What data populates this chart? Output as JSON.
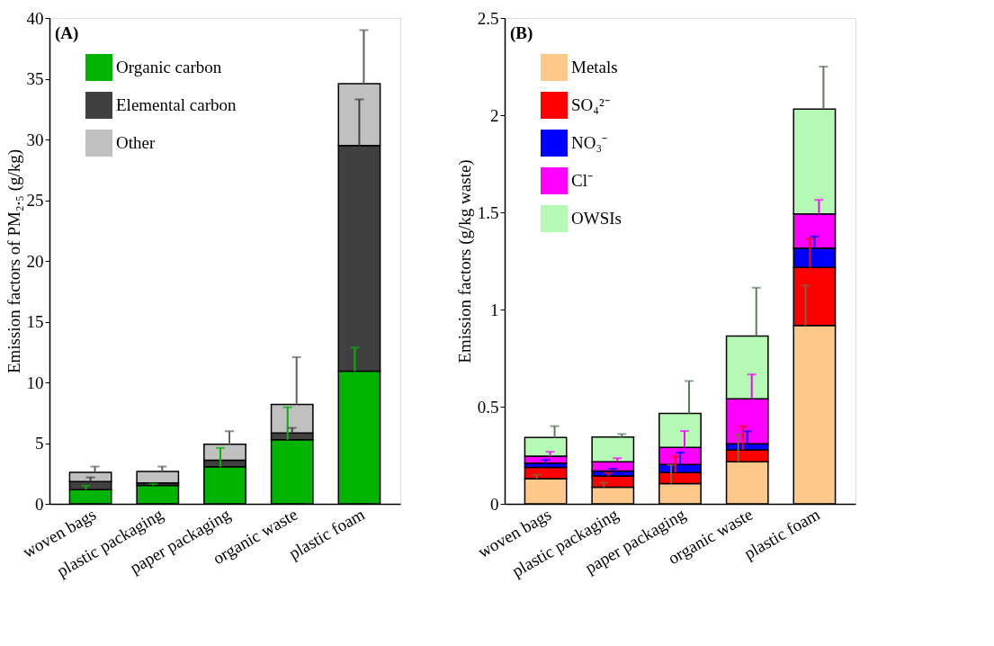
{
  "chart_data": [
    {
      "type": "bar",
      "stacked": true,
      "annotations": [
        "(A)"
      ],
      "ylabel": "Emission factors of PM₂.₅ (g/kg)",
      "categories": [
        "woven bags",
        "plastic packaging",
        "paper packaging",
        "organic waste",
        "plastic foam"
      ],
      "ylim": [
        0,
        40
      ],
      "yticks": [
        0,
        5,
        10,
        15,
        20,
        25,
        30,
        35,
        40
      ],
      "grid": false,
      "legend": "top left",
      "series": [
        {
          "name": "Organic carbon",
          "color": "#00b400",
          "values": [
            1.17,
            1.51,
            3.05,
            5.27,
            10.93
          ],
          "errors": [
            [
              1.17,
              1.49
            ],
            [
              1.51,
              1.65
            ],
            [
              3.05,
              4.6
            ],
            [
              5.27,
              7.95
            ],
            [
              10.93,
              12.85
            ]
          ]
        },
        {
          "name": "Elemental carbon",
          "color": "#404040",
          "values": [
            0.66,
            0.21,
            0.55,
            0.57,
            18.57
          ],
          "errors": [
            [
              1.83,
              2.18
            ],
            null,
            null,
            [
              5.84,
              6.25
            ],
            [
              29.5,
              33.3
            ]
          ]
        },
        {
          "name": "Other",
          "color": "#c0c0c0",
          "values": [
            0.76,
            0.94,
            1.3,
            2.34,
            5.1
          ],
          "errors": [
            [
              2.59,
              3.07
            ],
            [
              2.66,
              3.07
            ],
            [
              4.9,
              5.98
            ],
            [
              8.18,
              12.08
            ],
            [
              34.6,
              39.0
            ]
          ]
        }
      ]
    },
    {
      "type": "bar",
      "stacked": true,
      "annotations": [
        "(B)"
      ],
      "ylabel": "Emission factors (g/kg waste)",
      "categories": [
        "woven bags",
        "plastic packaging",
        "paper packaging",
        "organic waste",
        "plastic foam"
      ],
      "ylim": [
        0,
        2.5
      ],
      "yticks": [
        0,
        0.5,
        1,
        1.5,
        2,
        2.5
      ],
      "grid": false,
      "legend": "top left",
      "series": [
        {
          "name": "Metals",
          "color": "#fcc98a",
          "values": [
            0.13,
            0.086,
            0.104,
            0.216,
            0.918
          ],
          "errors": [
            [
              0.13,
              0.15
            ],
            [
              0.086,
              0.109
            ],
            [
              0.104,
              0.2
            ],
            [
              0.216,
              0.356
            ],
            [
              0.918,
              1.124
            ]
          ]
        },
        {
          "name": "SO₄²⁻",
          "color": "#ff0000",
          "values": [
            0.057,
            0.058,
            0.057,
            0.062,
            0.298
          ],
          "errors": [
            null,
            [
              0.144,
              0.159
            ],
            [
              0.161,
              0.243
            ],
            [
              0.278,
              0.399
            ],
            [
              1.216,
              1.364
            ]
          ]
        },
        {
          "name": "NO₃⁻",
          "color": "#0000ff",
          "values": [
            0.022,
            0.025,
            0.041,
            0.031,
            0.1
          ],
          "errors": [
            [
              0.209,
              0.226
            ],
            [
              0.169,
              0.181
            ],
            [
              0.202,
              0.264
            ],
            [
              0.309,
              0.373
            ],
            [
              1.316,
              1.376
            ]
          ]
        },
        {
          "name": "Cl⁻",
          "color": "#ff00ff",
          "values": [
            0.036,
            0.048,
            0.088,
            0.232,
            0.176
          ],
          "errors": [
            [
              0.245,
              0.268
            ],
            [
              0.217,
              0.235
            ],
            [
              0.29,
              0.375
            ],
            [
              0.541,
              0.666
            ],
            [
              1.492,
              1.564
            ]
          ]
        },
        {
          "name": "OWSIs",
          "color": "#b4fab4",
          "values": [
            0.096,
            0.127,
            0.175,
            0.323,
            0.539
          ],
          "errors": [
            [
              0.341,
              0.4
            ],
            [
              0.344,
              0.359
            ],
            [
              0.465,
              0.632
            ],
            [
              0.864,
              1.112
            ],
            [
              2.031,
              2.25
            ]
          ]
        }
      ]
    }
  ]
}
